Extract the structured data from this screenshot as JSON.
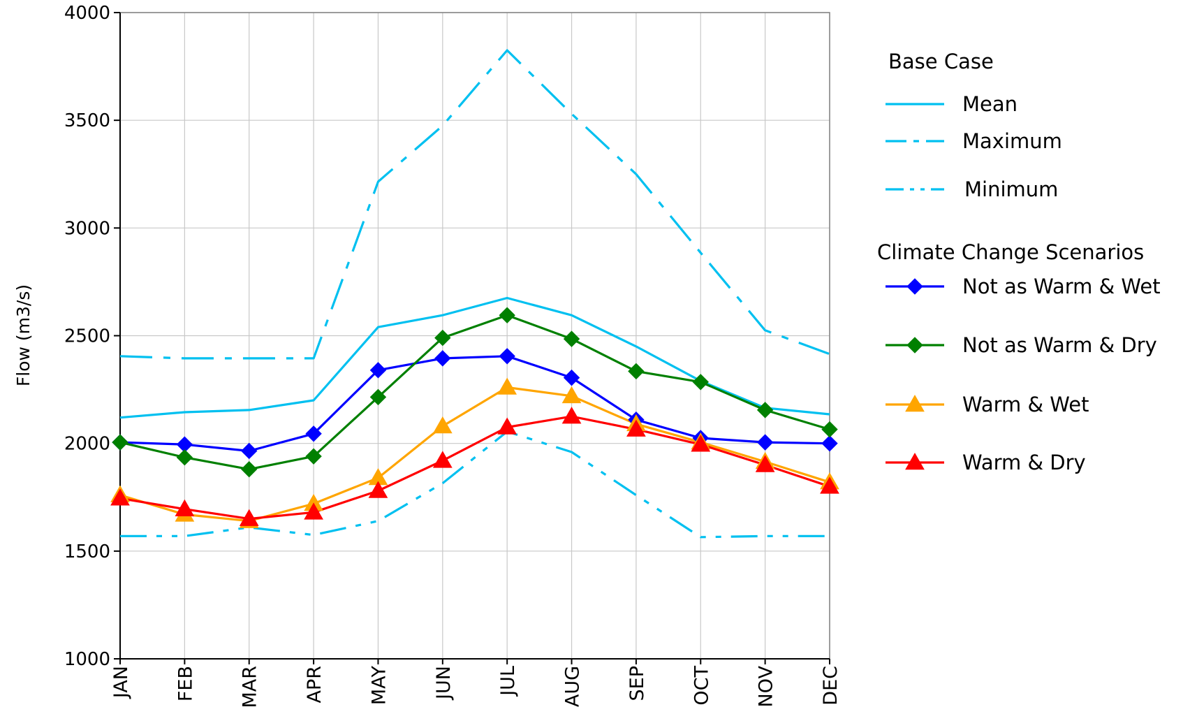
{
  "chart_data": {
    "type": "line",
    "title": "",
    "xlabel": "",
    "ylabel": "Flow (m3/s)",
    "ylim": [
      1000,
      4000
    ],
    "yticks": [
      "1000",
      "1500",
      "2000",
      "2500",
      "3000",
      "3500",
      "4000"
    ],
    "categories": [
      "JAN",
      "FEB",
      "MAR",
      "APR",
      "MAY",
      "JUN",
      "JUL",
      "AUG",
      "SEP",
      "OCT",
      "NOV",
      "DEC"
    ],
    "grid": true,
    "legend_position": "right",
    "legend_groups": [
      "Base Case",
      "Climate Change Scenarios"
    ],
    "series": [
      {
        "name": "Mean",
        "group": "Base Case",
        "color": "#00C0F0",
        "style": "solid",
        "marker": "none",
        "values": [
          2120,
          2145,
          2155,
          2200,
          2540,
          2595,
          2675,
          2595,
          2450,
          2290,
          2165,
          2135
        ]
      },
      {
        "name": "Maximum",
        "group": "Base Case",
        "color": "#00C0F0",
        "style": "dashdot",
        "marker": "none",
        "values": [
          2405,
          2395,
          2395,
          2395,
          3215,
          3475,
          3825,
          3530,
          3250,
          2885,
          2525,
          2415
        ]
      },
      {
        "name": "Minimum",
        "group": "Base Case",
        "color": "#00C0F0",
        "style": "dashdotdot",
        "marker": "none",
        "values": [
          1570,
          1570,
          1610,
          1575,
          1640,
          1815,
          2055,
          1960,
          1760,
          1565,
          1570,
          1570
        ]
      },
      {
        "name": "Not as Warm & Wet",
        "group": "Climate Change Scenarios",
        "color": "#0000FF",
        "style": "solid",
        "marker": "diamond",
        "values": [
          2005,
          1995,
          1965,
          2045,
          2340,
          2395,
          2405,
          2305,
          2110,
          2025,
          2005,
          2000
        ]
      },
      {
        "name": "Not as Warm & Dry",
        "group": "Climate Change Scenarios",
        "color": "#008000",
        "style": "solid",
        "marker": "diamond",
        "values": [
          2005,
          1935,
          1880,
          1940,
          2215,
          2490,
          2595,
          2485,
          2335,
          2285,
          2155,
          2065
        ]
      },
      {
        "name": "Warm & Wet",
        "group": "Climate Change Scenarios",
        "color": "#FFA500",
        "style": "solid",
        "marker": "triangle",
        "values": [
          1760,
          1670,
          1640,
          1720,
          1840,
          2080,
          2260,
          2220,
          2090,
          2005,
          1915,
          1820
        ]
      },
      {
        "name": "Warm & Dry",
        "group": "Climate Change Scenarios",
        "color": "#FF0000",
        "style": "solid",
        "marker": "triangle",
        "values": [
          1745,
          1695,
          1650,
          1680,
          1780,
          1920,
          2075,
          2125,
          2065,
          1995,
          1900,
          1800
        ]
      }
    ]
  }
}
